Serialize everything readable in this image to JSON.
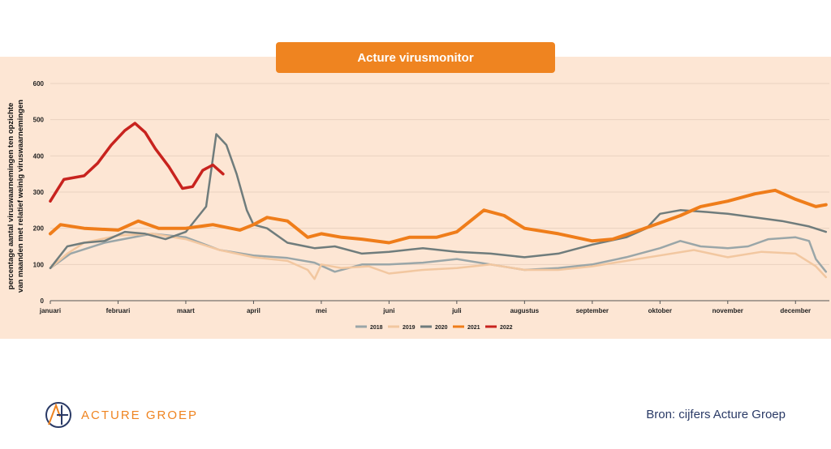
{
  "header": {
    "title": "Acture virusmonitor"
  },
  "colors": {
    "2018": "#9aa6a8",
    "2019": "#f2c7a0",
    "2020": "#6f7c7c",
    "2021": "#ef7d1a",
    "2022": "#c8231e",
    "title_bg": "#ef8420",
    "panel_bg": "#fde6d4"
  },
  "footer": {
    "logo_text": "ACTURE GROEP",
    "source": "Bron: cijfers Acture Groep"
  },
  "chart_data": {
    "type": "line",
    "ylabel_line1": "percentage aantal viruswaarnemingen ten opzichte",
    "ylabel_line2": "van maanden met relatief weinig viruswaarnemingen",
    "ylim": [
      0,
      600
    ],
    "yticks": [
      "0",
      "100",
      "200",
      "300",
      "400",
      "500",
      "600"
    ],
    "xlim": [
      0,
      11.5
    ],
    "categories": [
      "januari",
      "februari",
      "maart",
      "april",
      "mei",
      "juni",
      "juli",
      "augustus",
      "september",
      "oktober",
      "november",
      "december"
    ],
    "series": [
      {
        "name": "2018",
        "x": [
          0,
          0.3,
          0.8,
          1.5,
          2.0,
          2.5,
          3.0,
          3.5,
          3.9,
          4.2,
          4.6,
          5.0,
          5.5,
          6.0,
          6.5,
          7.0,
          7.5,
          8.0,
          8.5,
          9.0,
          9.3,
          9.6,
          10.0,
          10.3,
          10.6,
          11.0,
          11.2,
          11.3,
          11.45
        ],
        "values": [
          90,
          130,
          160,
          185,
          175,
          140,
          125,
          118,
          105,
          80,
          100,
          100,
          105,
          115,
          100,
          85,
          90,
          100,
          120,
          145,
          165,
          150,
          145,
          150,
          170,
          175,
          165,
          115,
          80
        ]
      },
      {
        "name": "2019",
        "x": [
          0,
          0.25,
          0.5,
          1.0,
          1.5,
          2.0,
          2.5,
          3.0,
          3.5,
          3.8,
          3.9,
          4.0,
          4.3,
          4.7,
          5.0,
          5.5,
          6.0,
          6.5,
          7.0,
          7.5,
          8.0,
          8.5,
          9.0,
          9.5,
          10.0,
          10.5,
          11.0,
          11.3,
          11.45
        ],
        "values": [
          90,
          130,
          160,
          180,
          185,
          170,
          140,
          120,
          110,
          85,
          60,
          100,
          90,
          95,
          75,
          85,
          90,
          100,
          85,
          85,
          95,
          110,
          125,
          140,
          120,
          135,
          130,
          95,
          65
        ]
      },
      {
        "name": "2020",
        "x": [
          0,
          0.25,
          0.5,
          0.8,
          1.1,
          1.4,
          1.7,
          2.0,
          2.3,
          2.45,
          2.6,
          2.75,
          2.9,
          3.0,
          3.2,
          3.5,
          3.9,
          4.2,
          4.6,
          5.0,
          5.5,
          6.0,
          6.5,
          7.0,
          7.5,
          8.0,
          8.5,
          8.8,
          9.0,
          9.3,
          9.7,
          10.0,
          10.4,
          10.8,
          11.2,
          11.45
        ],
        "values": [
          90,
          150,
          160,
          165,
          190,
          185,
          170,
          190,
          260,
          460,
          430,
          350,
          250,
          210,
          200,
          160,
          145,
          150,
          130,
          135,
          145,
          135,
          130,
          120,
          130,
          155,
          175,
          200,
          240,
          250,
          245,
          240,
          230,
          220,
          205,
          190
        ]
      },
      {
        "name": "2021",
        "x": [
          0,
          0.15,
          0.5,
          1.0,
          1.3,
          1.6,
          2.0,
          2.4,
          2.8,
          3.0,
          3.2,
          3.5,
          3.8,
          4.0,
          4.3,
          4.6,
          5.0,
          5.3,
          5.7,
          6.0,
          6.4,
          6.7,
          7.0,
          7.5,
          8.0,
          8.3,
          8.7,
          9.0,
          9.3,
          9.6,
          10.0,
          10.4,
          10.7,
          11.0,
          11.3,
          11.45
        ],
        "values": [
          185,
          210,
          200,
          195,
          220,
          200,
          200,
          210,
          195,
          210,
          230,
          220,
          175,
          185,
          175,
          170,
          160,
          175,
          175,
          190,
          250,
          235,
          200,
          185,
          165,
          170,
          195,
          215,
          235,
          260,
          275,
          295,
          305,
          280,
          260,
          265
        ]
      },
      {
        "name": "2022",
        "x": [
          0,
          0.1,
          0.2,
          0.35,
          0.5,
          0.7,
          0.9,
          1.1,
          1.25,
          1.4,
          1.55,
          1.75,
          1.95,
          2.1,
          2.25,
          2.4,
          2.55
        ],
        "values": [
          275,
          305,
          335,
          340,
          345,
          380,
          430,
          470,
          490,
          465,
          420,
          370,
          310,
          315,
          360,
          375,
          350
        ]
      }
    ]
  }
}
